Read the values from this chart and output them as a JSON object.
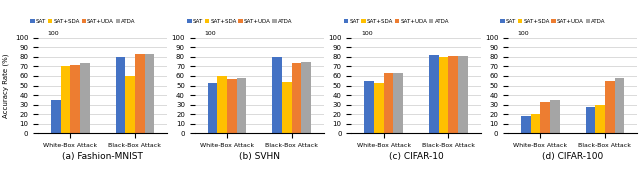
{
  "subplots": [
    {
      "title": "(a) Fashion-MNIST",
      "ylim": [
        0,
        100
      ],
      "groups": [
        "White-Box Attack",
        "Black-Box Attack"
      ],
      "values": {
        "SAT": [
          35,
          80
        ],
        "SAT+SDA": [
          70,
          60
        ],
        "SAT+UDA": [
          71,
          83
        ],
        "ATDA": [
          73,
          83
        ]
      }
    },
    {
      "title": "(b) SVHN",
      "ylim": [
        0,
        100
      ],
      "groups": [
        "White-Box Attack",
        "Black-Box Attack"
      ],
      "values": {
        "SAT": [
          53,
          80
        ],
        "SAT+SDA": [
          60,
          54
        ],
        "SAT+UDA": [
          57,
          74
        ],
        "ATDA": [
          58,
          75
        ]
      }
    },
    {
      "title": "(c) CIFAR-10",
      "ylim": [
        0,
        100
      ],
      "groups": [
        "White-Box Attack",
        "Black-Box Attack"
      ],
      "values": {
        "SAT": [
          55,
          82
        ],
        "SAT+SDA": [
          53,
          80
        ],
        "SAT+UDA": [
          63,
          81
        ],
        "ATDA": [
          63,
          81
        ]
      }
    },
    {
      "title": "(d) CIFAR-100",
      "ylim": [
        0,
        100
      ],
      "groups": [
        "White-Box Attack",
        "Black-Box Attack"
      ],
      "values": {
        "SAT": [
          18,
          28
        ],
        "SAT+SDA": [
          20,
          30
        ],
        "SAT+UDA": [
          33,
          55
        ],
        "ATDA": [
          35,
          58
        ]
      }
    }
  ],
  "legend_labels": [
    "SAT",
    "SAT+SDA",
    "SAT+UDA",
    "ATDA"
  ],
  "colors": {
    "SAT": "#4472C4",
    "SAT+SDA": "#FFC000",
    "SAT+UDA": "#ED7D31",
    "ATDA": "#A5A5A5"
  },
  "ylabel": "Accuracy Rate (%)",
  "bar_width": 0.15,
  "figure_bg": "#ffffff"
}
